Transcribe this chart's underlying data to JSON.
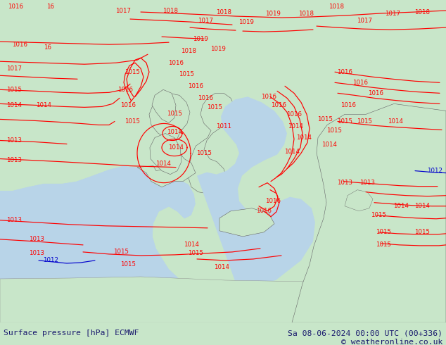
{
  "title_left": "Surface pressure [hPa] ECMWF",
  "title_right": "Sa 08-06-2024 00:00 UTC (00+336)",
  "copyright": "© weatheronline.co.uk",
  "land_color": "#c8e6c9",
  "sea_color": "#b8d4e8",
  "contour_red": "#ff0000",
  "contour_black": "#000000",
  "contour_blue": "#0000cd",
  "text_color": "#1a1a6e",
  "bottom_bar_color": "#d0d0d0",
  "figsize": [
    6.34,
    4.9
  ],
  "dpi": 100
}
